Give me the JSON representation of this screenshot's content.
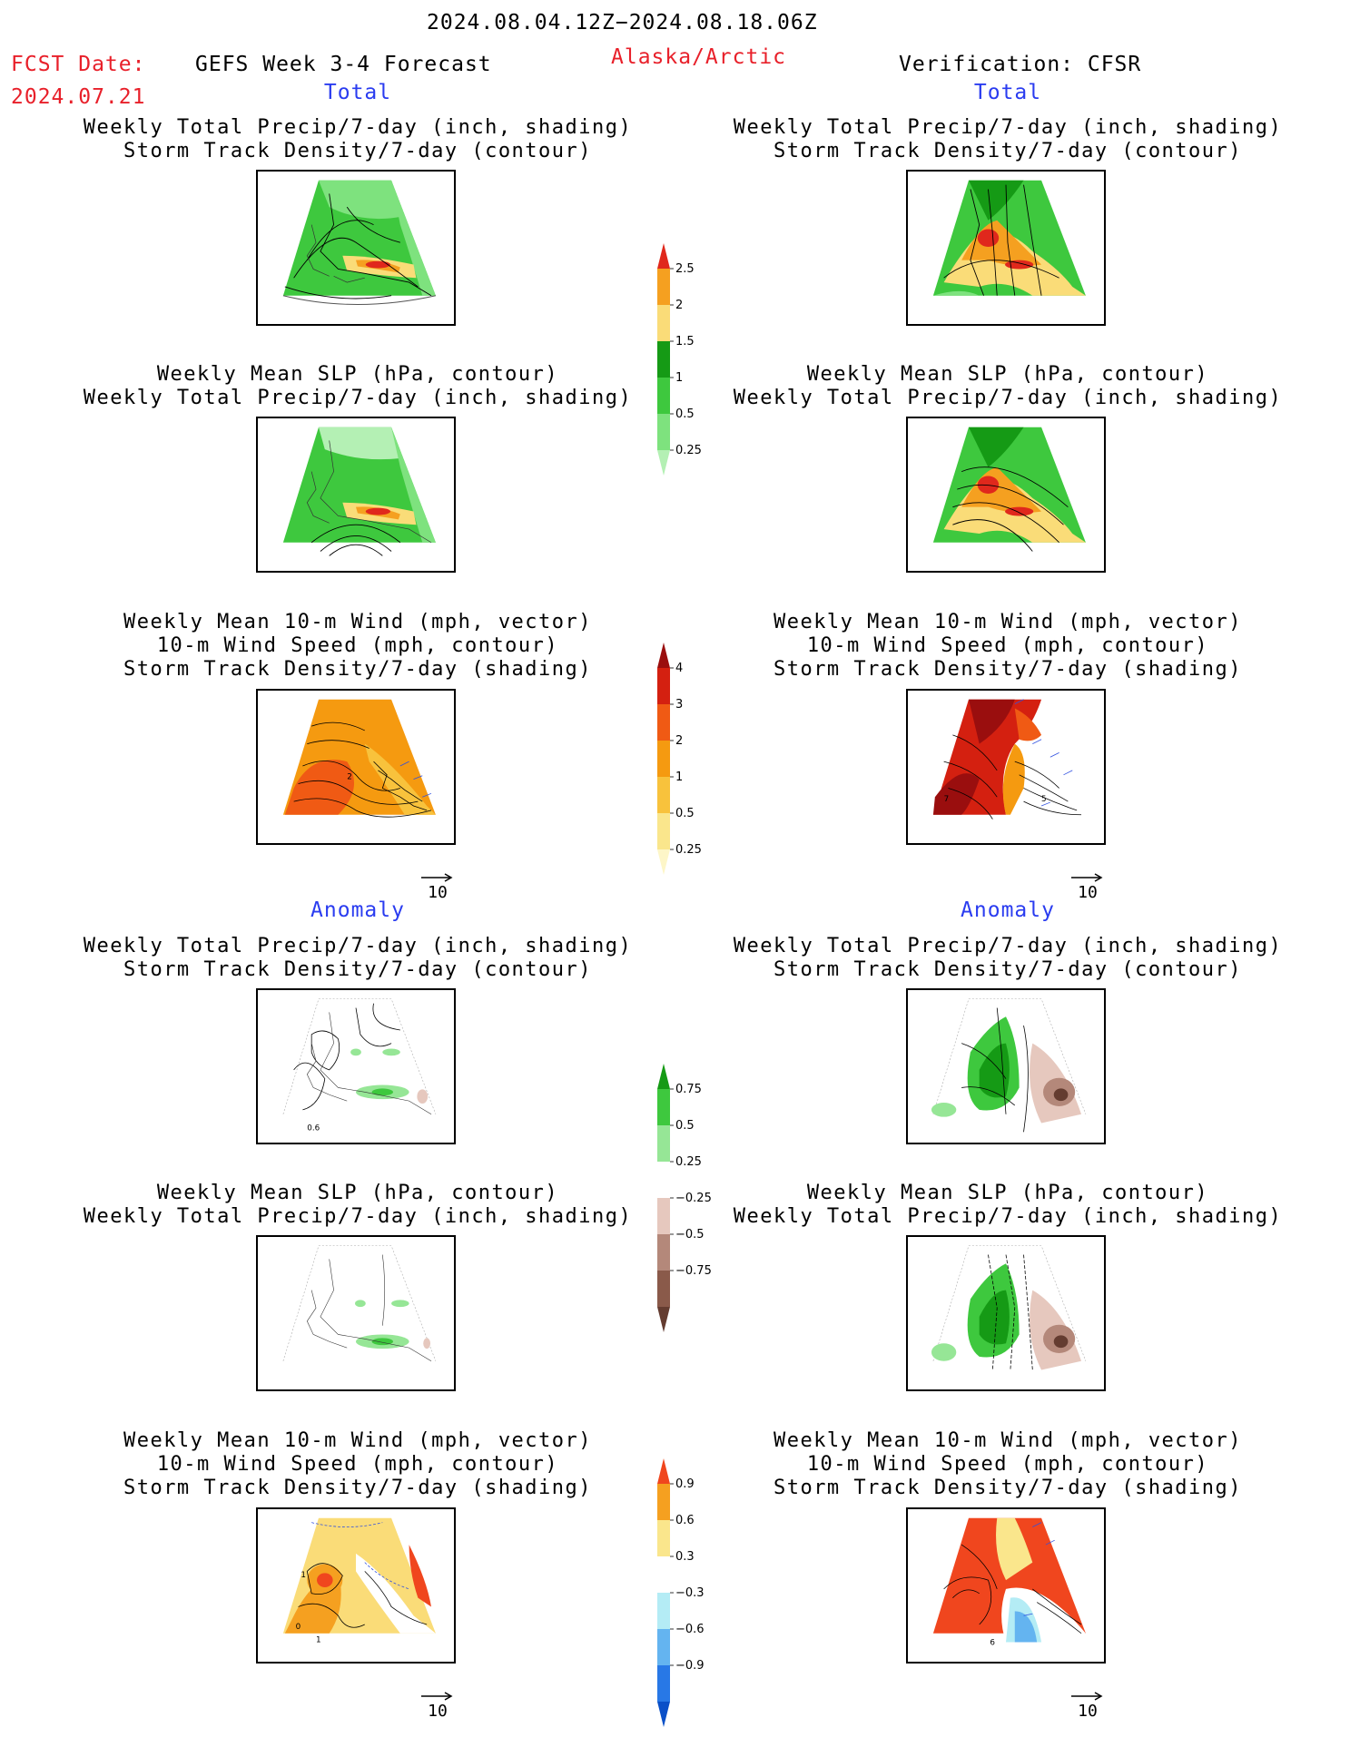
{
  "header": {
    "date_range": "2024.08.04.12Z−2024.08.18.06Z",
    "fcst_label": "FCST Date:",
    "fcst_date": "2024.07.21",
    "product": "GEFS Week 3-4 Forecast",
    "region": "Alaska/Arctic",
    "verification": "Verification: CFSR"
  },
  "sections": {
    "total": "Total",
    "anomaly": "Anomaly"
  },
  "titles": {
    "precip_storm": "Weekly Total Precip/7-day (inch, shading)\nStorm Track Density/7-day (contour)",
    "slp_precip": "Weekly Mean SLP (hPa, contour)\nWeekly Total Precip/7-day (inch, shading)",
    "wind_storm": "Weekly Mean 10-m Wind (mph, vector)\n10-m Wind Speed (mph, contour)\nStorm Track Density/7-day (shading)"
  },
  "vector_ref": "10",
  "map_labels": {
    "fcst_total_wind": "2",
    "cfsr_total_wind_a": "7",
    "cfsr_total_wind_b": "5",
    "fcst_anom_precip": "0.6",
    "fcst_anom_wind_a": "1",
    "fcst_anom_wind_b": "0",
    "fcst_anom_wind_c": "1",
    "cfsr_anom_wind": "6"
  },
  "colorbars": {
    "precip_total": {
      "labels": [
        "2.5",
        "2",
        "1.5",
        "1",
        "0.5",
        "0.25"
      ],
      "colors": [
        "#e0281c",
        "#f5a020",
        "#fadc78",
        "#159a15",
        "#3ec83e",
        "#7ee27e",
        "#b4f0b4"
      ]
    },
    "storm_total": {
      "labels": [
        "4",
        "3",
        "2",
        "1",
        "0.5",
        "0.25"
      ],
      "colors": [
        "#9a0e0e",
        "#d42010",
        "#f05a14",
        "#f59a10",
        "#f8c23c",
        "#fae68c",
        "#fdf6c8"
      ]
    },
    "precip_anom": {
      "labels": [
        "0.75",
        "0.5",
        "0.25",
        "−0.25",
        "−0.5",
        "−0.75"
      ],
      "colors": [
        "#159a15",
        "#3ec83e",
        "#96e696",
        "#ffffff",
        "#e6c8be",
        "#b4887a",
        "#8a5a4a",
        "#643c30"
      ]
    },
    "storm_anom": {
      "labels": [
        "0.9",
        "0.6",
        "0.3",
        "−0.3",
        "−0.6",
        "−0.9"
      ],
      "colors": [
        "#f0461e",
        "#f5a020",
        "#fae68c",
        "#ffffff",
        "#b4ecf5",
        "#64b4f0",
        "#2878e6",
        "#0a50c8"
      ]
    }
  }
}
